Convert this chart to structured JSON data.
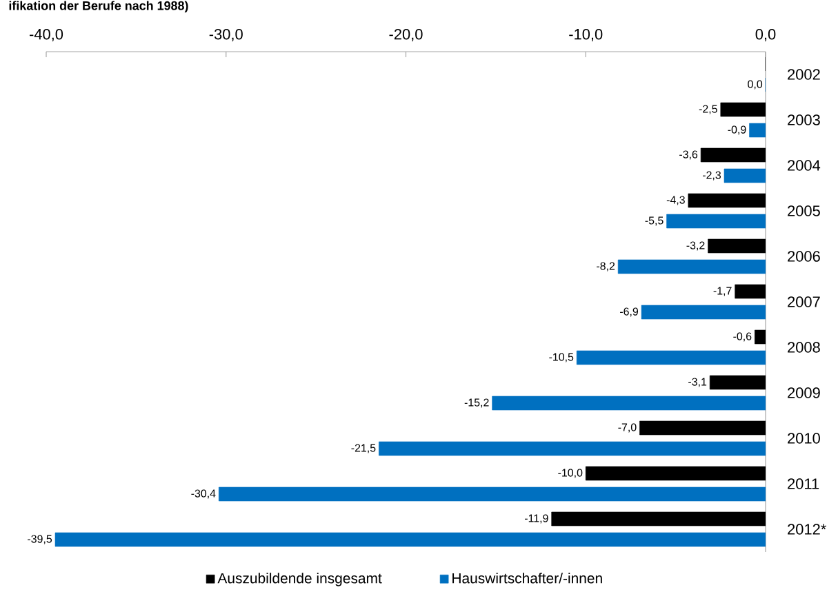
{
  "chart_data": {
    "type": "bar",
    "orientation": "horizontal",
    "title": "ifikation der Berufe nach 1988)",
    "categories": [
      "2002",
      "2003",
      "2004",
      "2005",
      "2006",
      "2007",
      "2008",
      "2009",
      "2010",
      "2011",
      "2012*"
    ],
    "series": [
      {
        "name": "Auszubildende insgesamt",
        "color": "#000000",
        "values": [
          0.0,
          -2.5,
          -3.6,
          -4.3,
          -3.2,
          -1.7,
          -0.6,
          -3.1,
          -7.0,
          -10.0,
          -11.9
        ],
        "value_labels": [
          null,
          "-2,5",
          "-3,6",
          "-4,3",
          "-3,2",
          "-1,7",
          "-0,6",
          "-3,1",
          "-7,0",
          "-10,0",
          "-11,9"
        ]
      },
      {
        "name": "Hauswirtschafter/-innen",
        "color": "#0070c0",
        "values": [
          0.0,
          -0.9,
          -2.3,
          -5.5,
          -8.2,
          -6.9,
          -10.5,
          -15.2,
          -21.5,
          -30.4,
          -39.5
        ],
        "value_labels": [
          "0,0",
          "-0,9",
          "-2,3",
          "-5,5",
          "-8,2",
          "-6,9",
          "-10,5",
          "-15,2",
          "-21,5",
          "-30,4",
          "-39,5"
        ]
      }
    ],
    "xlim": [
      -40,
      0
    ],
    "xticks": [
      {
        "value": -40,
        "label": "-40,0"
      },
      {
        "value": -30,
        "label": "-30,0"
      },
      {
        "value": -20,
        "label": "-20,0"
      },
      {
        "value": -10,
        "label": "-10,0"
      },
      {
        "value": 0,
        "label": "0,0"
      }
    ],
    "grid": false,
    "legend": "bottom"
  }
}
